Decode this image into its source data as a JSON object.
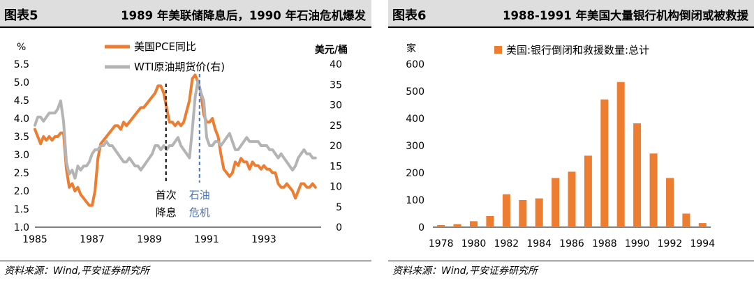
{
  "panels": {
    "left": {
      "label": "图表5",
      "title": "1989 年美联储降息后，1990 年石油危机爆发",
      "source": "资料来源：Wind,平安证券研究所"
    },
    "right": {
      "label": "图表6",
      "title": "1988-1991 年美国大量银行机构倒闭或被救援",
      "source": "资料来源：Wind,平安证券研究所"
    }
  },
  "colors": {
    "orange": "#ed7d31",
    "gray": "#b4b4b4",
    "blue_annotation": "#4472c4",
    "black": "#000000"
  },
  "chart_data": [
    {
      "type": "line",
      "y_unit_left": "%",
      "y_unit_right": "美元/桶",
      "ylim_left": [
        1.0,
        5.5
      ],
      "yticks_left": [
        "1.0",
        "1.5",
        "2.0",
        "2.5",
        "3.0",
        "3.5",
        "4.0",
        "4.5",
        "5.0",
        "5.5"
      ],
      "ylim_right": [
        0,
        40
      ],
      "yticks_right": [
        "0",
        "5",
        "10",
        "15",
        "20",
        "25",
        "30",
        "35",
        "40"
      ],
      "xlim": [
        1985.0,
        1995.0
      ],
      "xticks": [
        "1985",
        "1987",
        "1989",
        "1991",
        "1993"
      ],
      "series": [
        {
          "name": "美国PCE同比",
          "axis": "left",
          "color": "#ed7d31",
          "x": [
            1985.0,
            1985.1,
            1985.2,
            1985.3,
            1985.4,
            1985.5,
            1985.6,
            1985.7,
            1985.8,
            1985.9,
            1986.0,
            1986.1,
            1986.2,
            1986.3,
            1986.4,
            1986.5,
            1986.6,
            1986.7,
            1986.8,
            1986.9,
            1987.0,
            1987.1,
            1987.2,
            1987.3,
            1987.4,
            1987.5,
            1987.6,
            1987.7,
            1987.8,
            1987.9,
            1988.0,
            1988.1,
            1988.2,
            1988.3,
            1988.4,
            1988.5,
            1988.6,
            1988.7,
            1988.8,
            1988.9,
            1989.0,
            1989.1,
            1989.2,
            1989.3,
            1989.4,
            1989.5,
            1989.6,
            1989.7,
            1989.8,
            1989.9,
            1990.0,
            1990.1,
            1990.2,
            1990.3,
            1990.4,
            1990.5,
            1990.6,
            1990.7,
            1990.8,
            1990.9,
            1991.0,
            1991.1,
            1991.2,
            1991.3,
            1991.4,
            1991.5,
            1991.6,
            1991.7,
            1991.8,
            1991.9,
            1992.0,
            1992.1,
            1992.2,
            1992.3,
            1992.4,
            1992.5,
            1992.6,
            1992.7,
            1992.8,
            1992.9,
            1993.0,
            1993.1,
            1993.2,
            1993.3,
            1993.4,
            1993.5,
            1993.6,
            1993.7,
            1993.8,
            1993.9,
            1994.0,
            1994.1,
            1994.2,
            1994.3,
            1994.4,
            1994.5,
            1994.6,
            1994.7,
            1994.8
          ],
          "y": [
            3.7,
            3.5,
            3.3,
            3.5,
            3.4,
            3.5,
            3.4,
            3.5,
            3.5,
            3.6,
            3.6,
            2.6,
            2.1,
            2.2,
            2.0,
            2.1,
            1.9,
            1.8,
            1.7,
            1.6,
            1.6,
            2.0,
            2.9,
            3.3,
            3.4,
            3.5,
            3.6,
            3.7,
            3.8,
            3.8,
            3.7,
            3.9,
            3.8,
            3.9,
            4.0,
            4.1,
            4.2,
            4.3,
            4.3,
            4.4,
            4.5,
            4.6,
            4.7,
            4.9,
            4.9,
            4.7,
            4.3,
            3.9,
            3.9,
            3.8,
            3.9,
            3.8,
            3.9,
            4.2,
            4.5,
            5.1,
            5.2,
            5.0,
            4.7,
            4.1,
            3.9,
            3.9,
            4.0,
            3.7,
            3.5,
            3.0,
            2.6,
            2.5,
            2.4,
            2.5,
            2.8,
            2.7,
            2.9,
            2.8,
            2.8,
            2.6,
            2.8,
            2.7,
            2.7,
            2.6,
            2.7,
            2.6,
            2.6,
            2.5,
            2.5,
            2.2,
            2.1,
            2.1,
            2.2,
            2.1,
            2.0,
            1.8,
            2.0,
            2.2,
            2.2,
            2.1,
            2.1,
            2.2,
            2.1
          ]
        },
        {
          "name": "WTI原油期货价(右)",
          "axis": "right",
          "color": "#b4b4b4",
          "x": [
            1985.0,
            1985.1,
            1985.2,
            1985.3,
            1985.4,
            1985.5,
            1985.6,
            1985.7,
            1985.8,
            1985.9,
            1986.0,
            1986.1,
            1986.2,
            1986.3,
            1986.4,
            1986.5,
            1986.6,
            1986.7,
            1986.8,
            1986.9,
            1987.0,
            1987.1,
            1987.2,
            1987.3,
            1987.4,
            1987.5,
            1987.6,
            1987.7,
            1987.8,
            1987.9,
            1988.0,
            1988.1,
            1988.2,
            1988.3,
            1988.4,
            1988.5,
            1988.6,
            1988.7,
            1988.8,
            1988.9,
            1989.0,
            1989.1,
            1989.2,
            1989.3,
            1989.4,
            1989.5,
            1989.6,
            1989.7,
            1989.8,
            1989.9,
            1990.0,
            1990.1,
            1990.2,
            1990.3,
            1990.4,
            1990.5,
            1990.6,
            1990.7,
            1990.8,
            1990.9,
            1991.0,
            1991.1,
            1991.2,
            1991.3,
            1991.4,
            1991.5,
            1991.6,
            1991.7,
            1991.8,
            1991.9,
            1992.0,
            1992.1,
            1992.2,
            1992.3,
            1992.4,
            1992.5,
            1992.6,
            1992.7,
            1992.8,
            1992.9,
            1993.0,
            1993.1,
            1993.2,
            1993.3,
            1993.4,
            1993.5,
            1993.6,
            1993.7,
            1993.8,
            1993.9,
            1994.0,
            1994.1,
            1994.2,
            1994.3,
            1994.4,
            1994.5,
            1994.6,
            1994.7,
            1994.8
          ],
          "y": [
            25,
            27,
            27,
            26,
            27,
            28,
            28,
            28,
            29,
            31,
            26,
            16,
            13,
            14,
            12,
            15,
            14,
            15,
            15,
            16,
            18,
            19,
            19,
            20,
            20,
            21,
            20,
            20,
            19,
            18,
            17,
            16,
            16,
            17,
            16,
            15,
            15,
            14,
            15,
            16,
            17,
            18,
            20,
            20,
            19,
            20,
            19,
            20,
            20,
            21,
            22,
            20,
            19,
            18,
            17,
            24,
            32,
            36,
            33,
            31,
            22,
            20,
            20,
            21,
            21,
            20,
            21,
            22,
            23,
            21,
            19,
            19,
            20,
            21,
            22,
            21,
            21,
            21,
            21,
            20,
            20,
            20,
            19,
            19,
            18,
            17,
            18,
            17,
            16,
            15,
            14,
            15,
            17,
            18,
            19,
            18,
            18,
            17,
            17
          ]
        }
      ],
      "annotations": [
        {
          "text_line1": "首次",
          "text_line2": "降息",
          "x": 1989.58,
          "style": "dashed-black"
        },
        {
          "text_line1": "石油",
          "text_line2": "危机",
          "x": 1990.75,
          "style": "dashed-blue"
        }
      ]
    },
    {
      "type": "bar",
      "title": "",
      "y_unit": "家",
      "ylim": [
        0,
        600
      ],
      "yticks": [
        "0",
        "100",
        "200",
        "300",
        "400",
        "500",
        "600"
      ],
      "xlim": [
        1977.5,
        1994.5
      ],
      "xticks": [
        "1978",
        "1980",
        "1982",
        "1984",
        "1986",
        "1988",
        "1990",
        "1992",
        "1994"
      ],
      "series": [
        {
          "name": "美国:银行倒闭和救援数量:总计",
          "color": "#ed7d31",
          "x": [
            1978,
            1979,
            1980,
            1981,
            1982,
            1983,
            1984,
            1985,
            1986,
            1987,
            1988,
            1989,
            1990,
            1991,
            1992,
            1993,
            1994
          ],
          "values": [
            8,
            11,
            22,
            41,
            121,
            100,
            106,
            181,
            204,
            263,
            470,
            534,
            382,
            271,
            181,
            50,
            15
          ]
        }
      ]
    }
  ]
}
